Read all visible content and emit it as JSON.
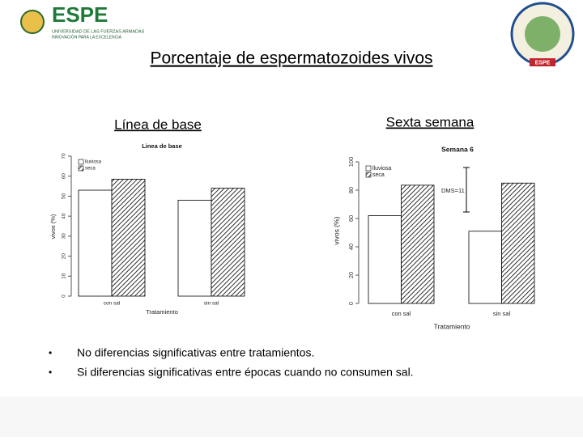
{
  "header": {
    "logo_text": "ESPE",
    "logo_line1": "UNIVERSIDAD DE LAS FUERZAS ARMADAS",
    "logo_line2": "INNOVACIÓN PARA LA EXCELENCIA",
    "right_logo_text": "ESPE"
  },
  "title": "Porcentaje de espermatozoides vivos",
  "subtitles": [
    "Línea de base",
    "Sexta semana"
  ],
  "chart_data": [
    {
      "type": "bar",
      "title": "Linea de base",
      "x_label": "Tratamiento",
      "y_label": "vivos (%)",
      "categories": [
        "con sal",
        "sin sal"
      ],
      "series": [
        {
          "name": "lluviosa",
          "color": "#ffffff",
          "hatch": false,
          "values": [
            53,
            48
          ]
        },
        {
          "name": "seca",
          "color": "#000000",
          "hatch": true,
          "values": [
            58.5,
            54
          ]
        }
      ],
      "ylim": [
        0,
        70
      ],
      "yticks": [
        0,
        10,
        20,
        30,
        40,
        50,
        60,
        70
      ]
    },
    {
      "type": "bar",
      "title": "Semana 6",
      "x_label": "Tratamiento",
      "y_label": "vivos (%)",
      "annotation": "DMS=11",
      "categories": [
        "con sal",
        "sin sal"
      ],
      "series": [
        {
          "name": "lluviosa",
          "color": "#ffffff",
          "hatch": false,
          "values": [
            62,
            51
          ]
        },
        {
          "name": "seca",
          "color": "#000000",
          "hatch": true,
          "values": [
            83.5,
            85
          ]
        }
      ],
      "ylim": [
        0,
        100
      ],
      "yticks": [
        0,
        20,
        40,
        60,
        80,
        100
      ]
    }
  ],
  "bullets": [
    "No diferencias significativas entre tratamientos.",
    "Si diferencias significativas entre épocas cuando no consumen sal."
  ]
}
